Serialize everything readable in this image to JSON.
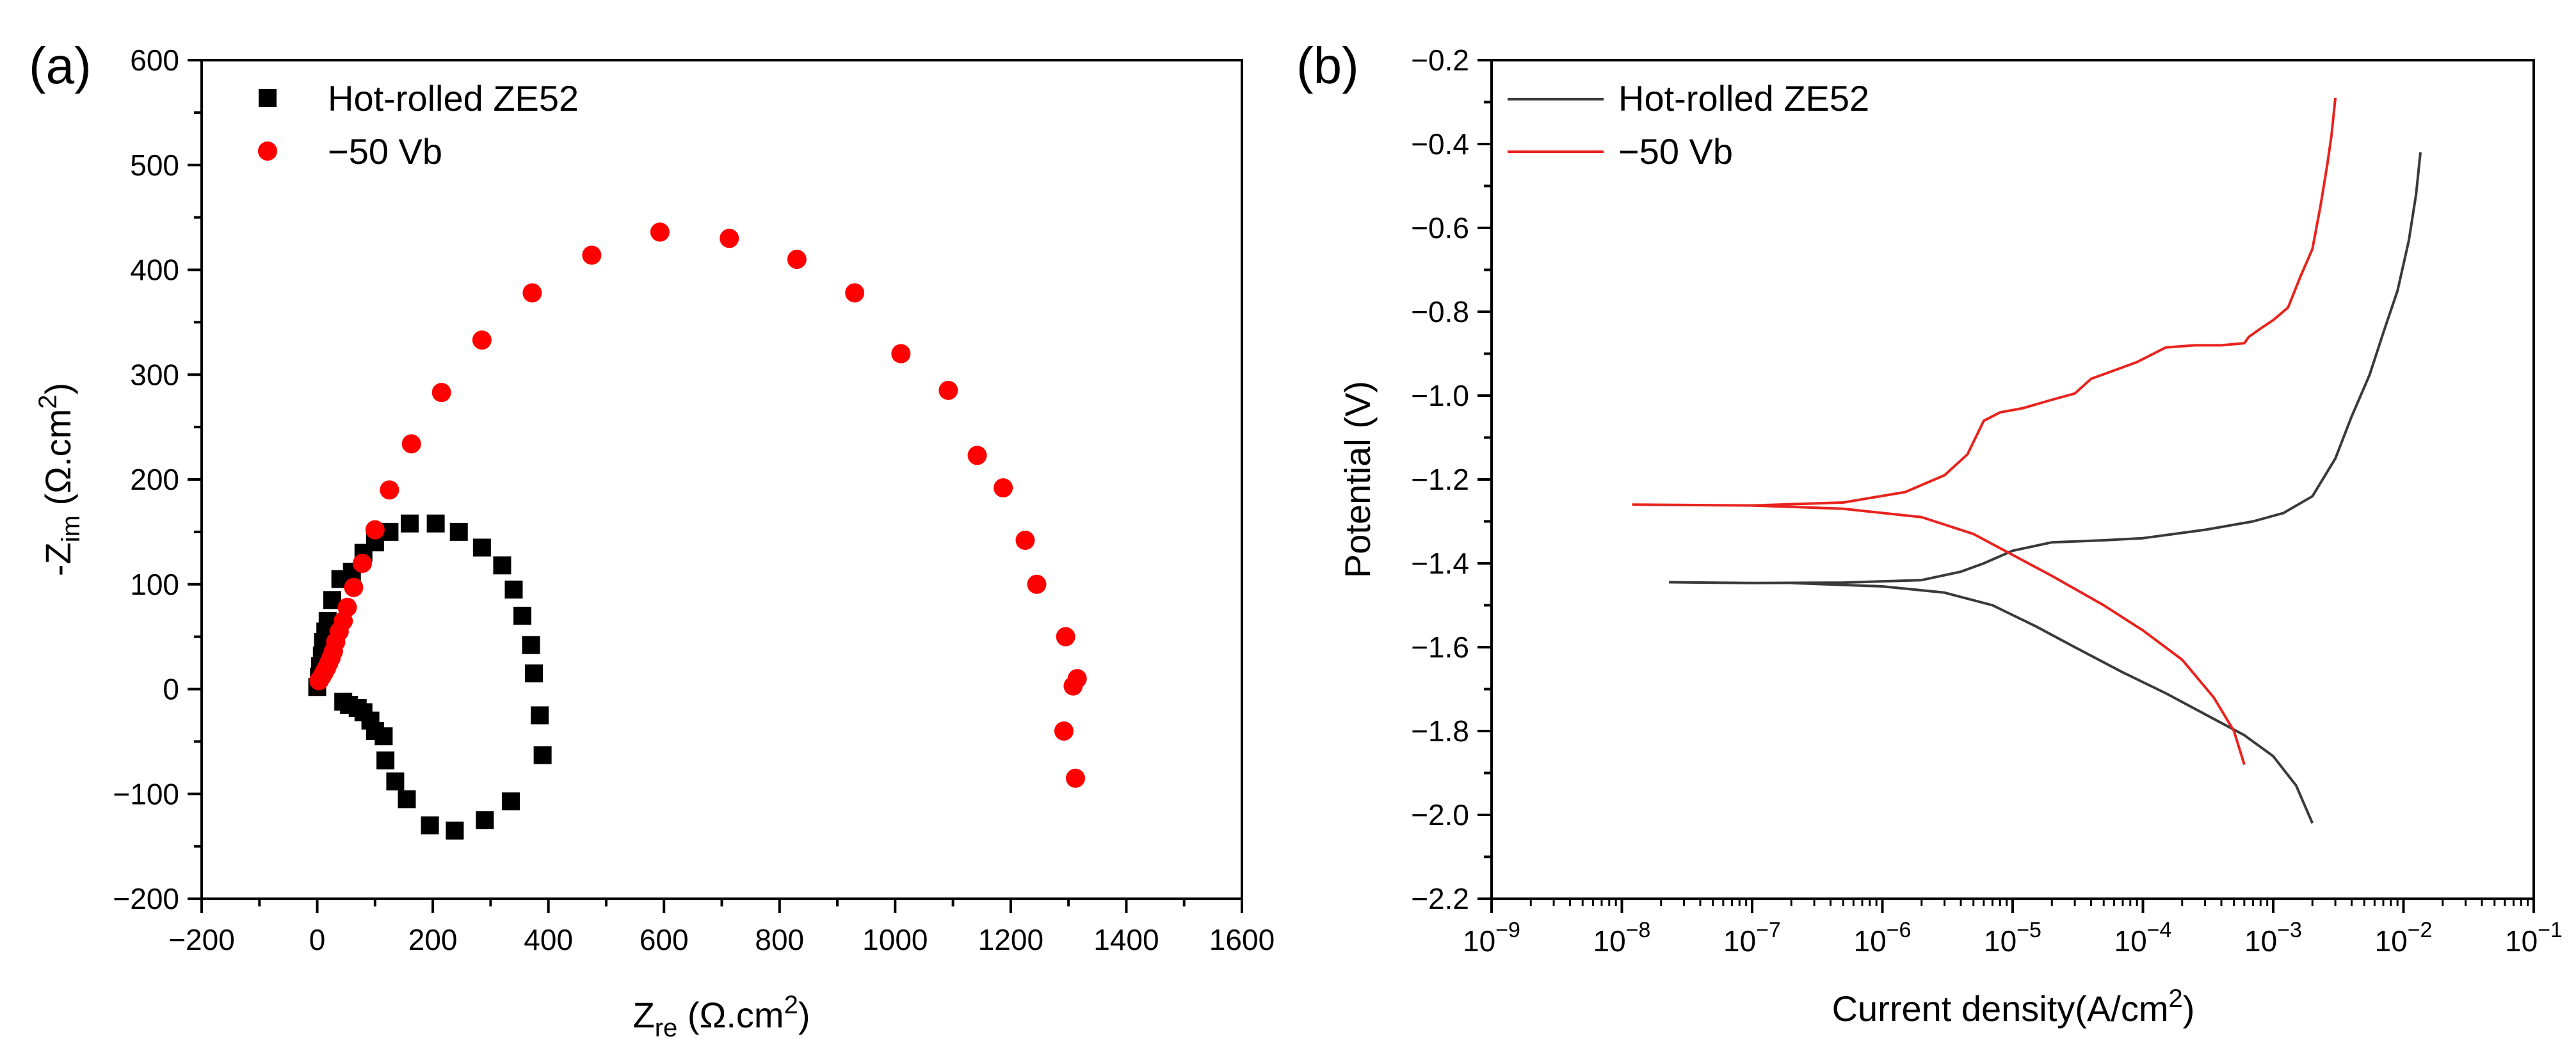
{
  "chart_data": [
    {
      "type": "scatter",
      "panel_label": "(a)",
      "xlabel": "Z",
      "xlabel_sub": "re",
      "xlabel_unit": " (Ω.cm",
      "xlabel_sup": "2",
      "xlabel_close": ")",
      "ylabel": "-Z",
      "ylabel_sub": "im",
      "ylabel_unit": " (Ω.cm",
      "ylabel_sup": "2",
      "ylabel_close": ")",
      "xlim": [
        -200,
        1600
      ],
      "ylim": [
        -200,
        600
      ],
      "xticks": [
        -200,
        0,
        200,
        400,
        600,
        800,
        1000,
        1200,
        1400,
        1600
      ],
      "yticks": [
        -200,
        -100,
        0,
        100,
        200,
        300,
        400,
        500,
        600
      ],
      "legend_position": "top-left",
      "series": [
        {
          "name": "Hot-rolled ZE52",
          "marker": "square",
          "color": "#000000",
          "points": [
            [
              0,
              2
            ],
            [
              3,
              12
            ],
            [
              5,
              22
            ],
            [
              8,
              32
            ],
            [
              10,
              45
            ],
            [
              14,
              55
            ],
            [
              18,
              65
            ],
            [
              26,
              85
            ],
            [
              40,
              105
            ],
            [
              60,
              112
            ],
            [
              80,
              130
            ],
            [
              100,
              140
            ],
            [
              125,
              150
            ],
            [
              160,
              158
            ],
            [
              205,
              158
            ],
            [
              245,
              150
            ],
            [
              285,
              135
            ],
            [
              320,
              118
            ],
            [
              340,
              95
            ],
            [
              355,
              70
            ],
            [
              370,
              42
            ],
            [
              375,
              15
            ],
            [
              385,
              -25
            ],
            [
              390,
              -63
            ],
            [
              335,
              -107
            ],
            [
              290,
              -125
            ],
            [
              238,
              -135
            ],
            [
              195,
              -130
            ],
            [
              155,
              -105
            ],
            [
              135,
              -88
            ],
            [
              118,
              -68
            ],
            [
              115,
              -45
            ],
            [
              100,
              -40
            ],
            [
              92,
              -30
            ],
            [
              80,
              -22
            ],
            [
              70,
              -18
            ],
            [
              55,
              -15
            ],
            [
              45,
              -12
            ]
          ]
        },
        {
          "name": "−50 Vb",
          "marker": "circle",
          "color": "#ff0000",
          "points": [
            [
              3,
              8
            ],
            [
              8,
              12
            ],
            [
              12,
              16
            ],
            [
              16,
              20
            ],
            [
              20,
              25
            ],
            [
              24,
              30
            ],
            [
              28,
              36
            ],
            [
              32,
              45
            ],
            [
              38,
              55
            ],
            [
              45,
              65
            ],
            [
              52,
              78
            ],
            [
              63,
              97
            ],
            [
              78,
              120
            ],
            [
              100,
              152
            ],
            [
              125,
              190
            ],
            [
              163,
              234
            ],
            [
              215,
              283
            ],
            [
              285,
              333
            ],
            [
              372,
              378
            ],
            [
              475,
              414
            ],
            [
              593,
              436
            ],
            [
              713,
              430
            ],
            [
              830,
              410
            ],
            [
              930,
              378
            ],
            [
              1010,
              320
            ],
            [
              1092,
              285
            ],
            [
              1142,
              223
            ],
            [
              1187,
              192
            ],
            [
              1225,
              142
            ],
            [
              1245,
              100
            ],
            [
              1295,
              50
            ],
            [
              1315,
              10
            ],
            [
              1308,
              3
            ],
            [
              1292,
              -40
            ],
            [
              1312,
              -85
            ]
          ]
        }
      ]
    },
    {
      "type": "line",
      "panel_label": "(b)",
      "xlabel": "Current density(A/cm",
      "xlabel_sup": "2",
      "xlabel_close": ")",
      "ylabel": "Potential (V)",
      "xscale": "log",
      "xlim": [
        1e-09,
        0.1
      ],
      "ylim": [
        -2.2,
        -0.2
      ],
      "xtick_base": "10",
      "xtick_exponents": [
        "−9",
        "−8",
        "−7",
        "−6",
        "−5",
        "−4",
        "−3",
        "−2",
        "−1"
      ],
      "yticks": [
        "−2.2",
        "−2.0",
        "−1.8",
        "−1.6",
        "−1.4",
        "−1.2",
        "−1.0",
        "−0.8",
        "−0.6",
        "−0.4",
        "−0.2"
      ],
      "legend_position": "top-left",
      "series": [
        {
          "name": "Hot-rolled ZE52",
          "color": "#3a3a3a",
          "branches": [
            [
              [
                2.3e-08,
                -1.445
              ],
              [
                1e-07,
                -1.447
              ],
              [
                5e-07,
                -1.446
              ],
              [
                2e-06,
                -1.44
              ],
              [
                4e-06,
                -1.42
              ],
              [
                6e-06,
                -1.4
              ],
              [
                1e-05,
                -1.37
              ],
              [
                2e-05,
                -1.35
              ],
              [
                5e-05,
                -1.345
              ],
              [
                0.0001,
                -1.34
              ],
              [
                0.0003,
                -1.32
              ],
              [
                0.0007,
                -1.3
              ],
              [
                0.0012,
                -1.28
              ],
              [
                0.002,
                -1.24
              ],
              [
                0.003,
                -1.15
              ],
              [
                0.004,
                -1.05
              ],
              [
                0.0055,
                -0.95
              ],
              [
                0.007,
                -0.85
              ],
              [
                0.009,
                -0.75
              ],
              [
                0.011,
                -0.63
              ],
              [
                0.0125,
                -0.52
              ],
              [
                0.0135,
                -0.42
              ]
            ],
            [
              [
                2e-07,
                -1.447
              ],
              [
                1e-06,
                -1.455
              ],
              [
                3e-06,
                -1.47
              ],
              [
                7e-06,
                -1.5
              ],
              [
                1.5e-05,
                -1.55
              ],
              [
                3e-05,
                -1.6
              ],
              [
                7e-05,
                -1.66
              ],
              [
                0.00015,
                -1.71
              ],
              [
                0.0003,
                -1.76
              ],
              [
                0.0006,
                -1.81
              ],
              [
                0.001,
                -1.86
              ],
              [
                0.0015,
                -1.93
              ],
              [
                0.002,
                -2.02
              ]
            ]
          ]
        },
        {
          "name": "−50 Vb",
          "color": "#e8231e",
          "branches": [
            [
              [
                1.2e-08,
                -1.26
              ],
              [
                1e-07,
                -1.262
              ],
              [
                5e-07,
                -1.255
              ],
              [
                1.5e-06,
                -1.23
              ],
              [
                3e-06,
                -1.19
              ],
              [
                4.5e-06,
                -1.14
              ],
              [
                6e-06,
                -1.06
              ],
              [
                8e-06,
                -1.04
              ],
              [
                1.2e-05,
                -1.03
              ],
              [
                2e-05,
                -1.01
              ],
              [
                3e-05,
                -0.995
              ],
              [
                4e-05,
                -0.96
              ],
              [
                6e-05,
                -0.94
              ],
              [
                9e-05,
                -0.92
              ],
              [
                0.00015,
                -0.885
              ],
              [
                0.00025,
                -0.88
              ],
              [
                0.0004,
                -0.88
              ],
              [
                0.0006,
                -0.875
              ],
              [
                0.00065,
                -0.86
              ],
              [
                0.0008,
                -0.84
              ],
              [
                0.001,
                -0.82
              ],
              [
                0.0013,
                -0.79
              ],
              [
                0.0016,
                -0.72
              ],
              [
                0.002,
                -0.65
              ],
              [
                0.0023,
                -0.55
              ],
              [
                0.0026,
                -0.45
              ],
              [
                0.0028,
                -0.38
              ],
              [
                0.003,
                -0.29
              ]
            ],
            [
              [
                1e-07,
                -1.262
              ],
              [
                5e-07,
                -1.27
              ],
              [
                2e-06,
                -1.29
              ],
              [
                5e-06,
                -1.33
              ],
              [
                1e-05,
                -1.38
              ],
              [
                2e-05,
                -1.43
              ],
              [
                5e-05,
                -1.5
              ],
              [
                0.0001,
                -1.56
              ],
              [
                0.0002,
                -1.63
              ],
              [
                0.00035,
                -1.72
              ],
              [
                0.0005,
                -1.8
              ],
              [
                0.0006,
                -1.88
              ]
            ]
          ]
        }
      ]
    }
  ]
}
